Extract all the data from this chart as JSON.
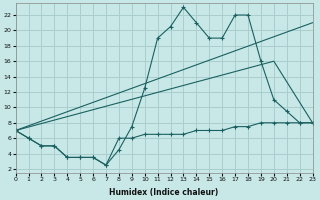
{
  "xlabel": "Humidex (Indice chaleur)",
  "bg_color": "#c8e8e8",
  "grid_color": "#aacece",
  "line_color": "#1a6060",
  "series": {
    "line1_x": [
      0,
      1,
      2,
      3,
      4,
      5,
      6,
      7,
      8,
      9,
      10,
      11,
      12,
      13,
      14,
      15,
      16,
      17,
      18,
      19,
      20,
      21,
      22,
      23
    ],
    "line1_y": [
      7,
      6,
      5,
      5,
      3.5,
      3.5,
      3.5,
      2.5,
      4.5,
      7.5,
      12.5,
      19,
      20.5,
      23,
      21,
      19,
      19,
      22,
      22,
      16,
      11,
      9.5,
      8,
      8
    ],
    "line2_x": [
      0,
      1,
      2,
      3,
      4,
      5,
      6,
      7,
      8,
      9,
      10,
      11,
      12,
      13,
      14,
      15,
      16,
      17,
      18,
      19,
      20,
      21,
      22,
      23
    ],
    "line2_y": [
      7,
      6,
      5,
      5,
      3.5,
      3.5,
      3.5,
      2.5,
      6,
      6,
      6.5,
      6.5,
      6.5,
      6.5,
      7,
      7,
      7,
      7.5,
      7.5,
      8,
      8,
      8,
      8,
      8
    ],
    "line3_x": [
      0,
      23
    ],
    "line3_y": [
      7,
      21
    ],
    "line4_x": [
      0,
      20,
      23
    ],
    "line4_y": [
      7,
      16,
      8
    ]
  },
  "xlim": [
    0,
    23
  ],
  "ylim": [
    1.5,
    23.5
  ],
  "yticks": [
    2,
    4,
    6,
    8,
    10,
    12,
    14,
    16,
    18,
    20,
    22
  ],
  "xticks": [
    0,
    1,
    2,
    3,
    4,
    5,
    6,
    7,
    8,
    9,
    10,
    11,
    12,
    13,
    14,
    15,
    16,
    17,
    18,
    19,
    20,
    21,
    22,
    23
  ]
}
